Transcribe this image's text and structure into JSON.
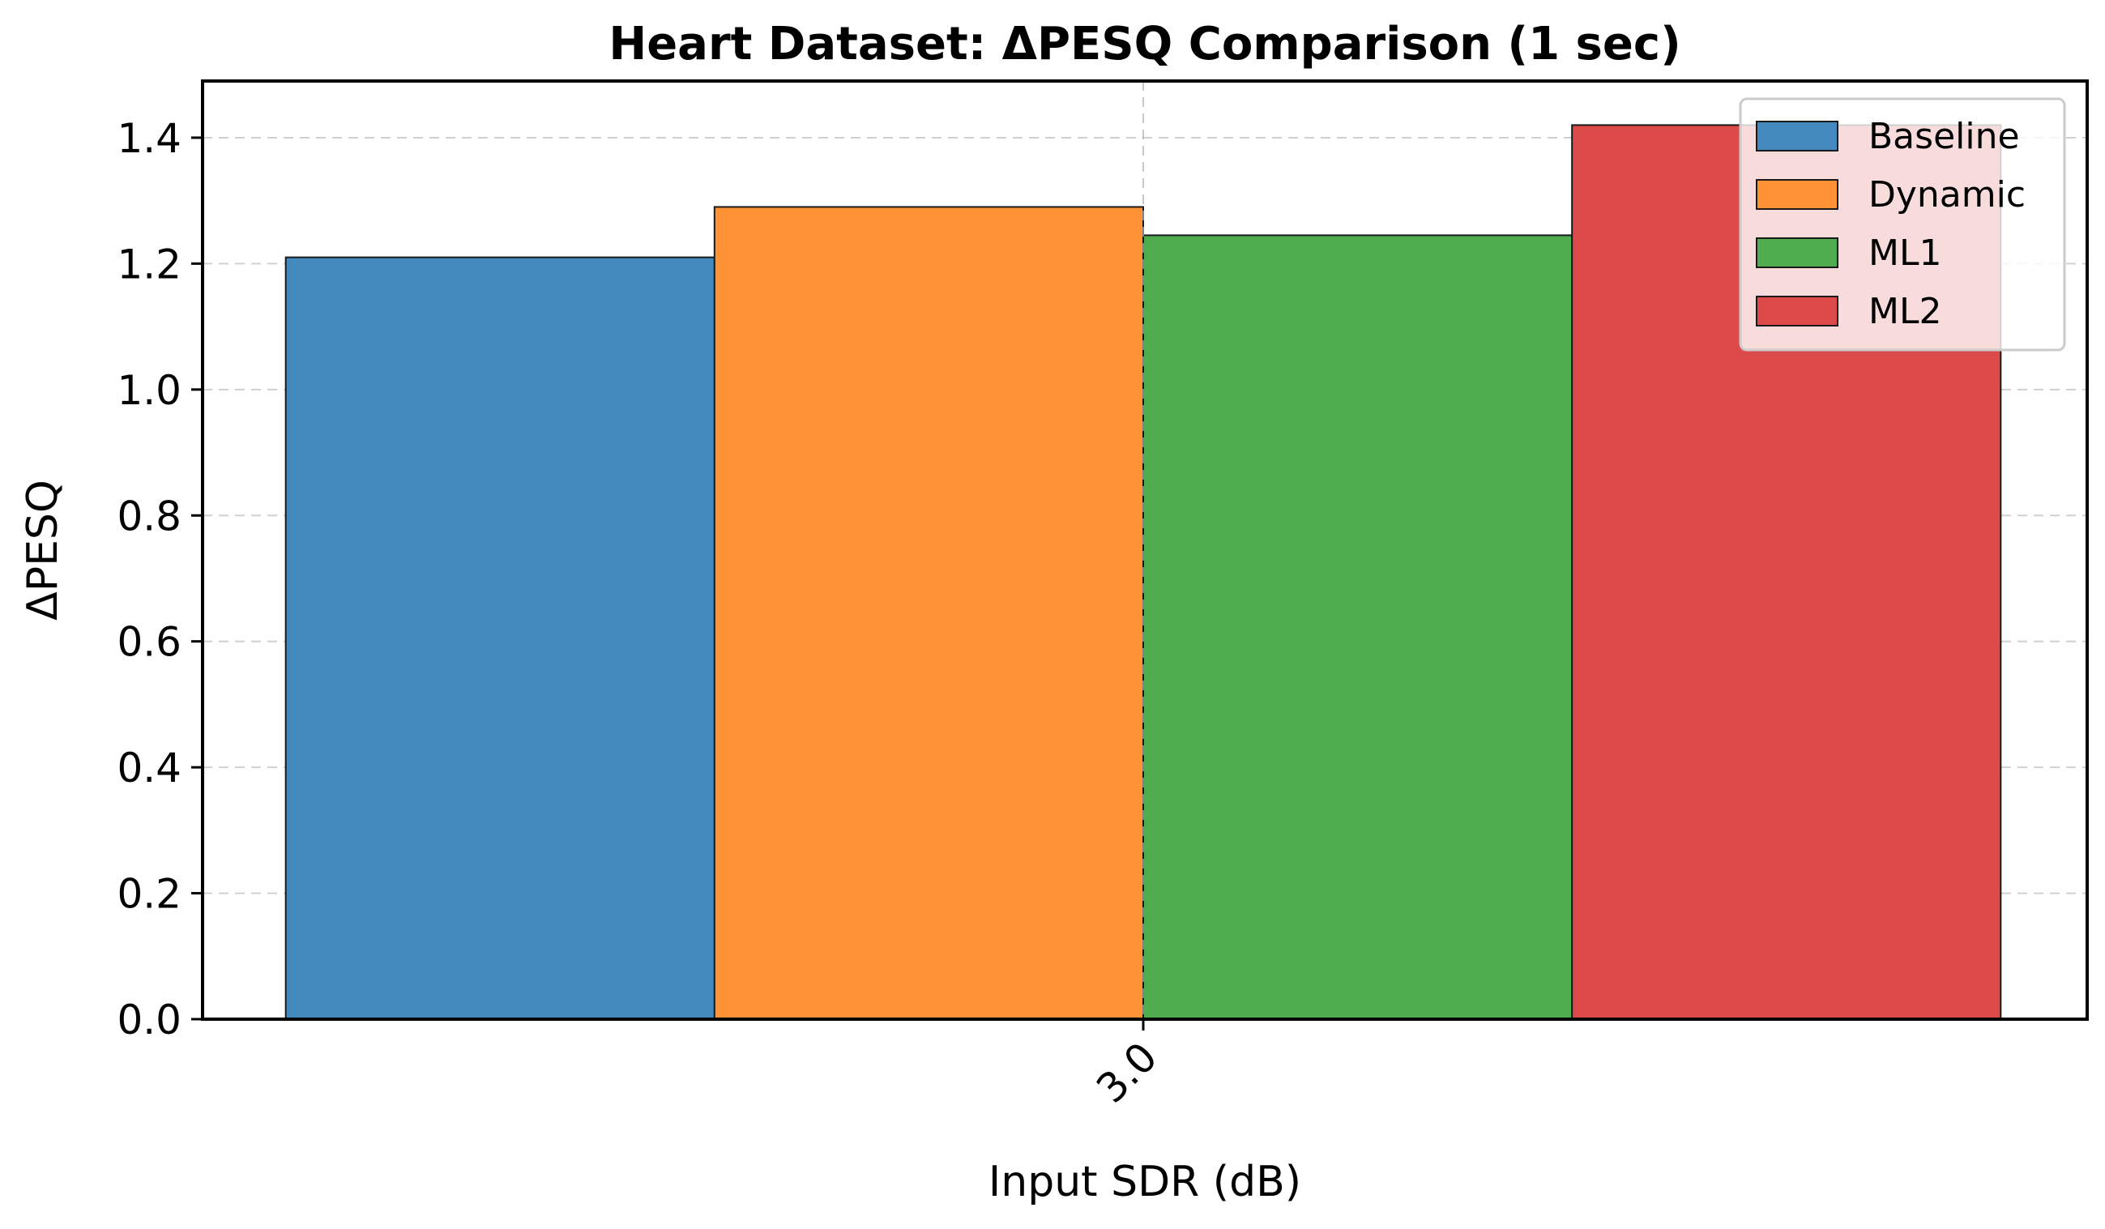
{
  "chart_data": {
    "type": "bar",
    "title": "Heart Dataset: ΔPESQ Comparison (1 sec)",
    "xlabel": "Input SDR (dB)",
    "ylabel": "ΔPESQ",
    "categories": [
      "3.0"
    ],
    "ylim": [
      0,
      1.49
    ],
    "yticks": [
      "0.0",
      "0.2",
      "0.4",
      "0.6",
      "0.8",
      "1.0",
      "1.2",
      "1.4"
    ],
    "grid": true,
    "legend_position": "top-right",
    "series": [
      {
        "name": "Baseline",
        "color": "#4389bd",
        "values": [
          1.21
        ]
      },
      {
        "name": "Dynamic",
        "color": "#fe9235",
        "values": [
          1.29
        ]
      },
      {
        "name": "ML1",
        "color": "#4fac4f",
        "values": [
          1.245
        ]
      },
      {
        "name": "ML2",
        "color": "#dc4a4a",
        "values": [
          1.42
        ]
      }
    ]
  }
}
